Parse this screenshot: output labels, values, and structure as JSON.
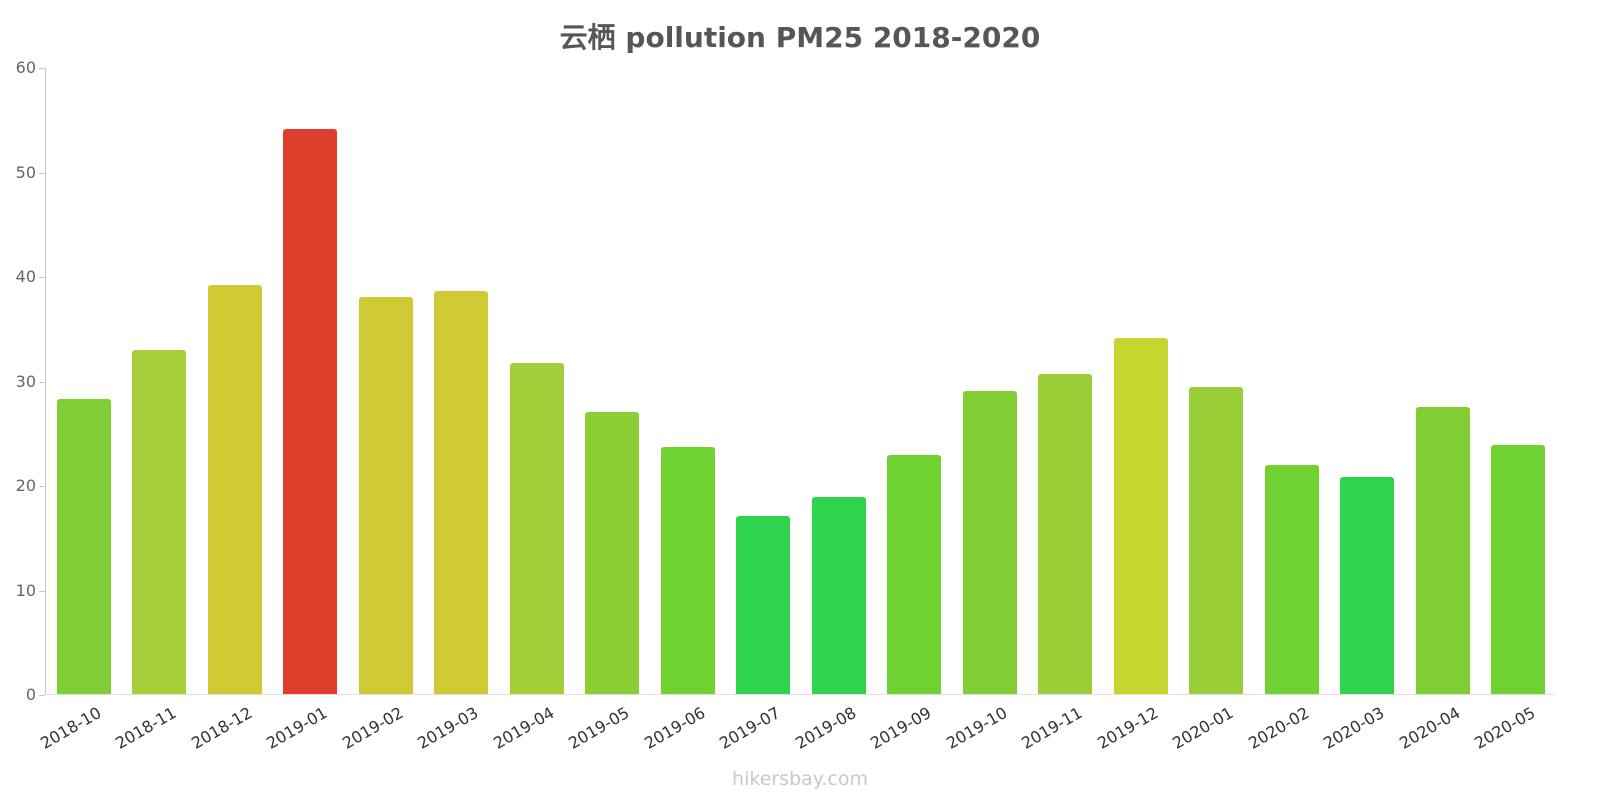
{
  "title": "云栖 pollution PM25 2018-2020",
  "footer": "hikersbay.com",
  "chart_data": {
    "type": "bar",
    "title": "云栖 pollution PM25 2018-2020",
    "xlabel": "",
    "ylabel": "",
    "ylim": [
      0,
      60
    ],
    "yticks": [
      0,
      10,
      20,
      30,
      40,
      50,
      60
    ],
    "grid": false,
    "legend": false,
    "categories": [
      "2018-10",
      "2018-11",
      "2018-12",
      "2019-01",
      "2019-02",
      "2019-03",
      "2019-04",
      "2019-05",
      "2019-06",
      "2019-07",
      "2019-08",
      "2019-09",
      "2019-10",
      "2019-11",
      "2019-12",
      "2020-01",
      "2020-02",
      "2020-03",
      "2020-04",
      "2020-05"
    ],
    "values": [
      28.2,
      32.9,
      39.1,
      54.1,
      38.0,
      38.6,
      31.7,
      27.0,
      23.6,
      17.0,
      18.9,
      22.9,
      29.0,
      30.6,
      34.1,
      29.4,
      21.9,
      20.8,
      27.5,
      23.8
    ],
    "colors": [
      "#7fce33",
      "#a6ce39",
      "#cfc933",
      "#de3f2c",
      "#cfc933",
      "#cfc933",
      "#a2ce38",
      "#8cce36",
      "#6fd231",
      "#2fd34c",
      "#2fd34c",
      "#6fd231",
      "#80ce34",
      "#9ace37",
      "#c7d62f",
      "#9ace37",
      "#6fd231",
      "#2fd34c",
      "#80ce34",
      "#6fd231"
    ],
    "axis_color": "#c9c9c9",
    "label_color": "#333333",
    "tick_label_color": "#666666",
    "title_color": "#565658",
    "watermark_color": "#c9c9c9"
  }
}
